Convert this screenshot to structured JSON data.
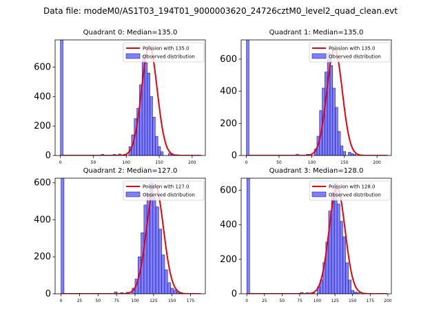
{
  "suptitle": "Data file: modeM0/AS1T03_194T01_9000003620_24726cztM0_level2_quad_clean.evt",
  "chart_data": [
    {
      "type": "bar",
      "title": "Quadrant 0: Median=135.0",
      "xlim": [
        -8,
        220
      ],
      "ylim": [
        0,
        785
      ],
      "xticks": [
        0,
        50,
        100,
        150,
        200
      ],
      "yticks": [
        0,
        200,
        400,
        600
      ],
      "spike": {
        "x": 0,
        "value": 785
      },
      "median": 135.0,
      "sigma": 11.8,
      "peak": 745,
      "bin_width": 4,
      "bins": {
        "start": 104,
        "values": [
          60,
          140,
          250,
          320,
          480,
          680,
          630,
          560,
          400,
          260,
          130,
          60,
          25
        ]
      },
      "low_tail": [
        [
          62,
          8
        ],
        [
          80,
          8
        ],
        [
          88,
          10
        ],
        [
          96,
          8
        ]
      ],
      "high_tail": [
        [
          164,
          15
        ],
        [
          168,
          8
        ],
        [
          176,
          5
        ]
      ],
      "legend": [
        "Poission with 135.0",
        "Observed distribution"
      ]
    },
    {
      "type": "bar",
      "title": "Quadrant 1: Median=135.0",
      "xlim": [
        -8,
        222
      ],
      "ylim": [
        0,
        720
      ],
      "xticks": [
        0,
        50,
        100,
        150,
        200
      ],
      "yticks": [
        0,
        200,
        400,
        600
      ],
      "spike": {
        "x": 0,
        "value": 720
      },
      "median": 135.0,
      "sigma": 11.8,
      "peak": 665,
      "bin_width": 4,
      "bins": {
        "start": 104,
        "values": [
          40,
          120,
          280,
          420,
          520,
          640,
          560,
          420,
          300,
          150,
          60,
          25
        ]
      },
      "low_tail": [
        [
          76,
          8
        ],
        [
          92,
          8
        ]
      ],
      "high_tail": [
        [
          156,
          20
        ],
        [
          160,
          12
        ],
        [
          164,
          6
        ],
        [
          172,
          4
        ]
      ],
      "legend": [
        "Poission with 135.0",
        "Observed distribution"
      ]
    },
    {
      "type": "bar",
      "title": "Quadrant 2: Median=127.0",
      "xlim": [
        -8,
        195
      ],
      "ylim": [
        0,
        625
      ],
      "xticks": [
        0,
        25,
        50,
        75,
        100,
        125,
        150,
        175
      ],
      "yticks": [
        0,
        200,
        400,
        600
      ],
      "spike": {
        "x": 0,
        "value": 625
      },
      "median": 127.0,
      "sigma": 11.3,
      "peak": 590,
      "bin_width": 4,
      "bins": {
        "start": 96,
        "values": [
          30,
          80,
          200,
          330,
          480,
          540,
          600,
          520,
          470,
          350,
          210,
          130,
          60
        ]
      },
      "low_tail": [
        [
          72,
          10
        ],
        [
          80,
          6
        ],
        [
          88,
          8
        ]
      ],
      "high_tail": [
        [
          148,
          30
        ],
        [
          152,
          20
        ],
        [
          156,
          10
        ],
        [
          160,
          5
        ],
        [
          176,
          3
        ]
      ],
      "legend": [
        "Poission with 127.0",
        "Observed distribution"
      ]
    },
    {
      "type": "bar",
      "title": "Quadrant 3: Median=128.0",
      "xlim": [
        -8,
        205
      ],
      "ylim": [
        0,
        670
      ],
      "xticks": [
        0,
        25,
        50,
        75,
        100,
        125,
        150,
        175,
        200
      ],
      "yticks": [
        0,
        200,
        400,
        600
      ],
      "spike": {
        "x": 0,
        "value": 670
      },
      "median": 128.0,
      "sigma": 11.3,
      "peak": 615,
      "bin_width": 4,
      "bins": {
        "start": 100,
        "values": [
          40,
          80,
          180,
          300,
          480,
          590,
          640,
          520,
          420,
          330,
          180,
          80,
          20
        ]
      },
      "low_tail": [
        [
          76,
          8
        ],
        [
          84,
          6
        ],
        [
          92,
          5
        ]
      ],
      "high_tail": [
        [
          152,
          10
        ],
        [
          156,
          6
        ],
        [
          164,
          4
        ],
        [
          176,
          3
        ]
      ],
      "legend": [
        "Poission with 128.0",
        "Observed distribution"
      ]
    }
  ]
}
